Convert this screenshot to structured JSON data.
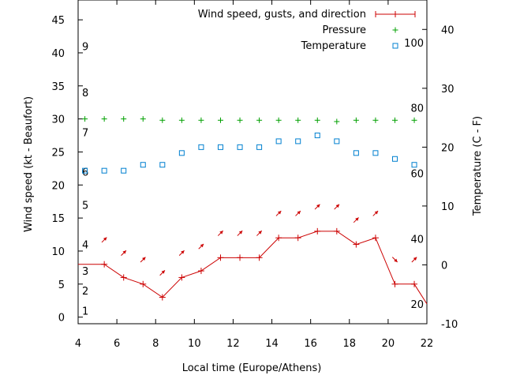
{
  "chart_data": {
    "type": "line",
    "xlabel": "Local time (Europe/Athens)",
    "ylabel_left": "Wind speed (kt - Beaufort)",
    "ylabel_right": "Temperature (C - F)",
    "xlim": [
      4,
      22
    ],
    "ylim_left": [
      -1,
      48
    ],
    "ylim_right": [
      -10,
      45
    ],
    "x_ticks": [
      4,
      6,
      8,
      10,
      12,
      14,
      16,
      18,
      20,
      22
    ],
    "y_left_ticks": [
      0,
      5,
      10,
      15,
      20,
      25,
      30,
      35,
      40,
      45
    ],
    "y_right_ticks": [
      -10,
      0,
      10,
      20,
      30,
      40
    ],
    "beaufort_labels": [
      {
        "label": "1",
        "kt": 1
      },
      {
        "label": "2",
        "kt": 4
      },
      {
        "label": "3",
        "kt": 7
      },
      {
        "label": "4",
        "kt": 11
      },
      {
        "label": "5",
        "kt": 17
      },
      {
        "label": "6",
        "kt": 22
      },
      {
        "label": "7",
        "kt": 28
      },
      {
        "label": "8",
        "kt": 34
      },
      {
        "label": "9",
        "kt": 41
      }
    ],
    "fahrenheit_labels": [
      {
        "label": "20",
        "celsius": -6.67
      },
      {
        "label": "40",
        "celsius": 4.44
      },
      {
        "label": "60",
        "celsius": 15.56
      },
      {
        "label": "80",
        "celsius": 26.67
      },
      {
        "label": "100",
        "celsius": 37.78
      }
    ],
    "legend_position": "top-right",
    "series": [
      {
        "name": "Wind speed, gusts, and direction",
        "color": "#cc0000",
        "x": [
          4.0,
          5.35,
          6.35,
          7.35,
          8.35,
          9.35,
          10.35,
          11.35,
          12.35,
          13.35,
          14.35,
          15.35,
          16.35,
          17.35,
          18.35,
          19.35,
          20.35,
          21.35,
          22.0
        ],
        "values": [
          8,
          8,
          6,
          5,
          3,
          6,
          7,
          9,
          9,
          9,
          12,
          12,
          13,
          13,
          11,
          12,
          5,
          5,
          2
        ],
        "directions": [
          "",
          "NE",
          "NE",
          "NE",
          "NE",
          "NE",
          "NE",
          "NE",
          "NE",
          "NE",
          "NE",
          "NE",
          "NE",
          "NE",
          "NE",
          "NE",
          "SE",
          "NE",
          ""
        ]
      },
      {
        "name": "Pressure",
        "color": "#00a000",
        "marker": "+",
        "x": [
          4.35,
          5.35,
          6.35,
          7.35,
          8.35,
          9.35,
          10.35,
          11.35,
          12.35,
          13.35,
          14.35,
          15.35,
          16.35,
          17.35,
          18.35,
          19.35,
          20.35,
          21.35
        ],
        "values": [
          30,
          30,
          30,
          30,
          29.8,
          29.8,
          29.8,
          29.8,
          29.8,
          29.8,
          29.8,
          29.8,
          29.8,
          29.6,
          29.8,
          29.8,
          29.8,
          29.8
        ]
      },
      {
        "name": "Temperature",
        "color": "#0080d0",
        "marker": "square",
        "axis": "right",
        "x": [
          4.35,
          5.35,
          6.35,
          7.35,
          8.35,
          9.35,
          10.35,
          11.35,
          12.35,
          13.35,
          14.35,
          15.35,
          16.35,
          17.35,
          18.35,
          19.35,
          20.35,
          21.35
        ],
        "values": [
          16,
          16,
          16,
          17,
          17,
          19,
          20,
          20,
          20,
          20,
          21,
          21,
          22,
          21,
          19,
          19,
          18,
          17
        ]
      }
    ]
  }
}
